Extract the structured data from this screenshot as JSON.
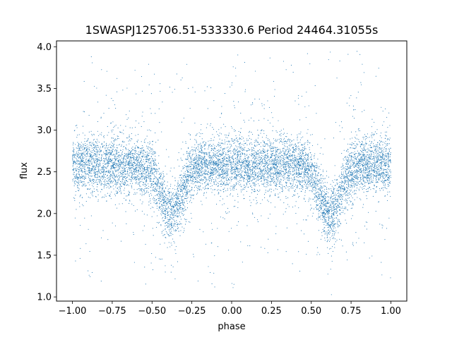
{
  "chart_data": {
    "type": "scatter",
    "title": "1SWASPJ125706.51-533330.6 Period 24464.31055s",
    "xlabel": "phase",
    "ylabel": "flux",
    "xlim": [
      -1.1,
      1.1
    ],
    "ylim": [
      0.95,
      4.07
    ],
    "x_ticks": [
      -1.0,
      -0.75,
      -0.5,
      -0.25,
      0.0,
      0.25,
      0.5,
      0.75,
      1.0
    ],
    "x_tick_labels": [
      "−1.00",
      "−0.75",
      "−0.50",
      "−0.25",
      "0.00",
      "0.25",
      "0.50",
      "0.75",
      "1.00"
    ],
    "y_ticks": [
      1.0,
      1.5,
      2.0,
      2.5,
      3.0,
      3.5,
      4.0
    ],
    "y_tick_labels": [
      "1.0",
      "1.5",
      "2.0",
      "2.5",
      "3.0",
      "3.5",
      "4.0"
    ],
    "grid": false,
    "legend": "none",
    "marker_color": "#1f77b4",
    "series": [
      {
        "phase_range": [
          -1.0,
          1.0
        ],
        "baseline_flux": 2.58,
        "scatter_sigma": 0.17,
        "dips": [
          {
            "center_phase": -0.38,
            "min_flux": 2.0
          },
          {
            "center_phase": 0.62,
            "min_flux": 2.0
          }
        ],
        "outlier_flux_range": [
          1.1,
          3.95
        ]
      }
    ]
  }
}
